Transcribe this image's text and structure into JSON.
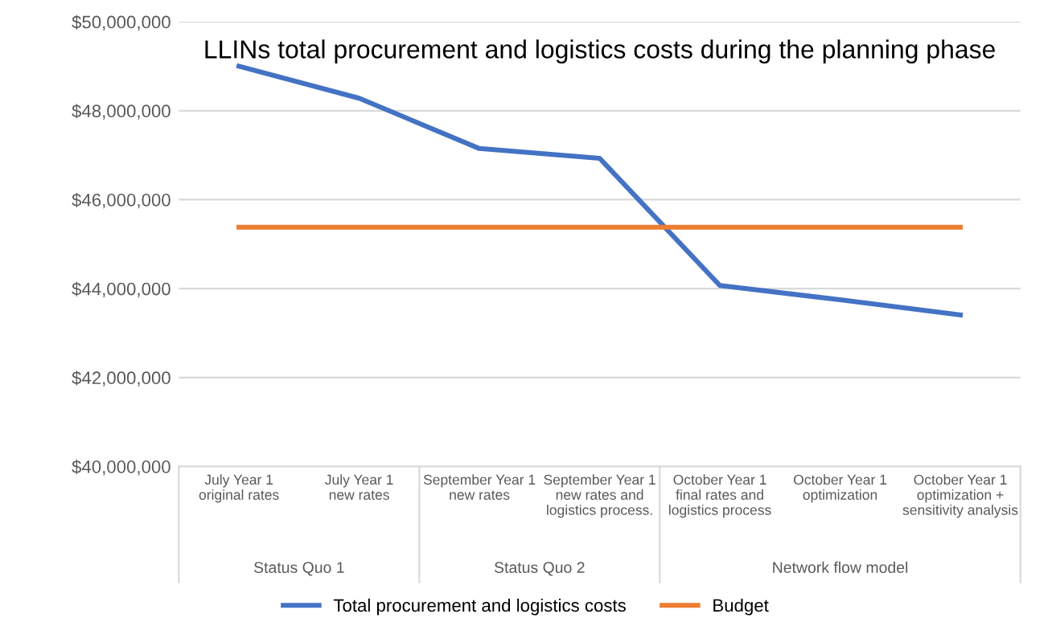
{
  "chart_data": {
    "type": "line",
    "title": "LLINs total procurement and logistics costs during the planning phase",
    "categories": [
      "July Year 1\noriginal rates",
      "July Year 1\nnew rates",
      "September Year 1\nnew rates",
      "September Year 1\nnew rates and\nlogistics process.",
      "October Year 1\nfinal rates and\nlogistics process",
      "October Year 1\noptimization",
      "October Year 1\noptimization +\nsensitivity analysis"
    ],
    "series": [
      {
        "name": "Total procurement and logistics costs",
        "color": "#4472c4",
        "values": [
          49000000,
          48280000,
          47150000,
          46930000,
          44070000,
          43750000,
          43410000
        ]
      },
      {
        "name": "Budget",
        "color": "#ed7d31",
        "values": [
          45380000,
          45380000,
          45380000,
          45380000,
          45380000,
          45380000,
          45380000
        ]
      }
    ],
    "ylim": [
      40000000,
      50000000
    ],
    "yticks": [
      {
        "value": 40000000,
        "label": "$40,000,000"
      },
      {
        "value": 42000000,
        "label": "$42,000,000"
      },
      {
        "value": 44000000,
        "label": "$44,000,000"
      },
      {
        "value": 46000000,
        "label": "$46,000,000"
      },
      {
        "value": 48000000,
        "label": "$48,000,000"
      },
      {
        "value": 50000000,
        "label": "$50,000,000"
      }
    ],
    "annotations": [
      "Status Quo 1",
      "Status Quo 2",
      "Network flow model"
    ],
    "grid": "y",
    "legend": "bottom",
    "marker": "none",
    "line_style": "solid"
  }
}
